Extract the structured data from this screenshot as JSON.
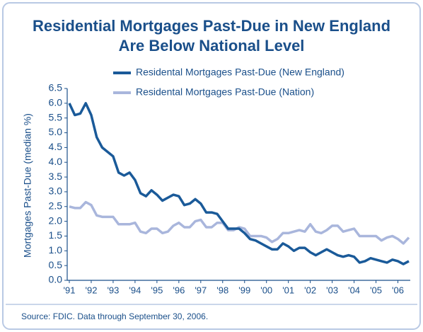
{
  "chart_data": {
    "type": "line",
    "title": [
      "Residential Mortgages Past-Due in New England",
      "Are Below National Level"
    ],
    "ylabel": "Mortgages Past-Due (median %)",
    "source": "Source: FDIC. Data through September 30, 2006.",
    "categories": [
      "'91",
      null,
      null,
      null,
      "'92",
      null,
      null,
      null,
      "'93",
      null,
      null,
      null,
      "'94",
      null,
      null,
      null,
      "'95",
      null,
      null,
      null,
      "'96",
      null,
      null,
      null,
      "'97",
      null,
      null,
      null,
      "'98",
      null,
      null,
      null,
      "'99",
      null,
      null,
      null,
      "'00",
      null,
      null,
      null,
      "'01",
      null,
      null,
      null,
      "'02",
      null,
      null,
      null,
      "'03",
      null,
      null,
      null,
      "'04",
      null,
      null,
      null,
      "'05",
      null,
      null,
      null,
      "'06",
      null,
      null
    ],
    "series": [
      {
        "name": "Residental Mortgages Past-Due (New England)",
        "color": "#1a5a99",
        "values": [
          6.0,
          5.6,
          5.65,
          6.0,
          5.6,
          4.85,
          4.5,
          4.35,
          4.2,
          3.65,
          3.55,
          3.65,
          3.4,
          2.95,
          2.85,
          3.05,
          2.9,
          2.7,
          2.8,
          2.9,
          2.85,
          2.55,
          2.6,
          2.75,
          2.6,
          2.3,
          2.3,
          2.25,
          2.0,
          1.75,
          1.75,
          1.75,
          1.6,
          1.4,
          1.35,
          1.25,
          1.15,
          1.05,
          1.05,
          1.25,
          1.15,
          1.0,
          1.1,
          1.1,
          0.95,
          0.85,
          0.95,
          1.05,
          0.95,
          0.85,
          0.8,
          0.85,
          0.8,
          0.6,
          0.65,
          0.75,
          0.7,
          0.65,
          0.6,
          0.7,
          0.65,
          0.55,
          0.65
        ]
      },
      {
        "name": "Residental Mortgages Past-Due (Nation)",
        "color": "#a9b6dc",
        "values": [
          2.5,
          2.45,
          2.45,
          2.65,
          2.55,
          2.2,
          2.15,
          2.15,
          2.15,
          1.9,
          1.9,
          1.9,
          1.95,
          1.65,
          1.6,
          1.75,
          1.75,
          1.6,
          1.65,
          1.85,
          1.95,
          1.8,
          1.8,
          2.0,
          2.05,
          1.8,
          1.8,
          1.95,
          1.95,
          1.7,
          1.7,
          1.8,
          1.75,
          1.5,
          1.5,
          1.5,
          1.45,
          1.3,
          1.4,
          1.6,
          1.6,
          1.65,
          1.7,
          1.65,
          1.9,
          1.65,
          1.6,
          1.7,
          1.85,
          1.85,
          1.65,
          1.7,
          1.75,
          1.5,
          1.5,
          1.5,
          1.5,
          1.35,
          1.45,
          1.5,
          1.4,
          1.25,
          1.45
        ]
      }
    ],
    "ylim": [
      0,
      6.5
    ],
    "yticks": [
      {
        "value": 0,
        "label": "0.0"
      },
      0.5,
      {
        "value": 1,
        "label": "1.0"
      },
      1.5,
      {
        "value": 2,
        "label": "2.0"
      },
      2.5,
      {
        "value": 3,
        "label": "3.0"
      },
      3.5,
      {
        "value": 4,
        "label": "4.0"
      },
      4.5,
      {
        "value": 5,
        "label": "5.0"
      },
      5.5,
      {
        "value": 6,
        "label": "6.0"
      },
      6.5
    ]
  }
}
